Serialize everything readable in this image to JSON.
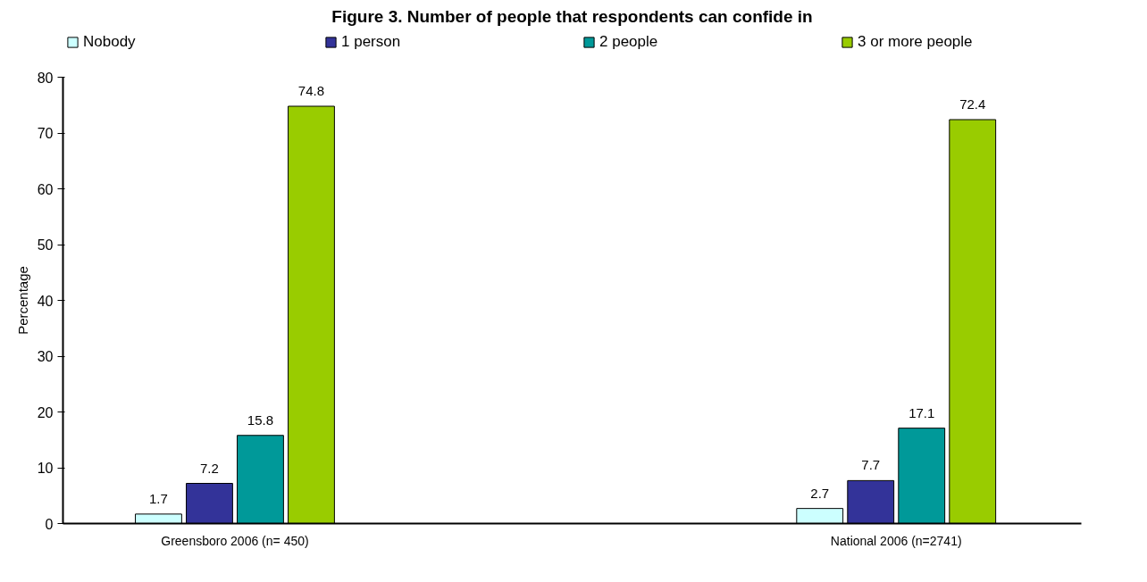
{
  "chart_data": {
    "type": "bar",
    "title": "Figure 3. Number of people that respondents can confide in",
    "ylabel": "Percentage",
    "categories": [
      "Greensboro 2006 (n= 450)",
      "National 2006 (n=2741)"
    ],
    "series": [
      {
        "name": "Nobody",
        "color": "#ccffff",
        "values": [
          1.7,
          2.7
        ]
      },
      {
        "name": "1 person",
        "color": "#333399",
        "values": [
          7.2,
          7.7
        ]
      },
      {
        "name": "2 people",
        "color": "#009999",
        "values": [
          15.8,
          17.1
        ]
      },
      {
        "name": "3 or more people",
        "color": "#99cc00",
        "values": [
          74.8,
          72.4
        ]
      }
    ],
    "ylim": [
      0,
      80
    ],
    "yticks": [
      0,
      10,
      20,
      30,
      40,
      50,
      60,
      70,
      80
    ],
    "data_labels": true,
    "legend": "top",
    "grid": false
  }
}
